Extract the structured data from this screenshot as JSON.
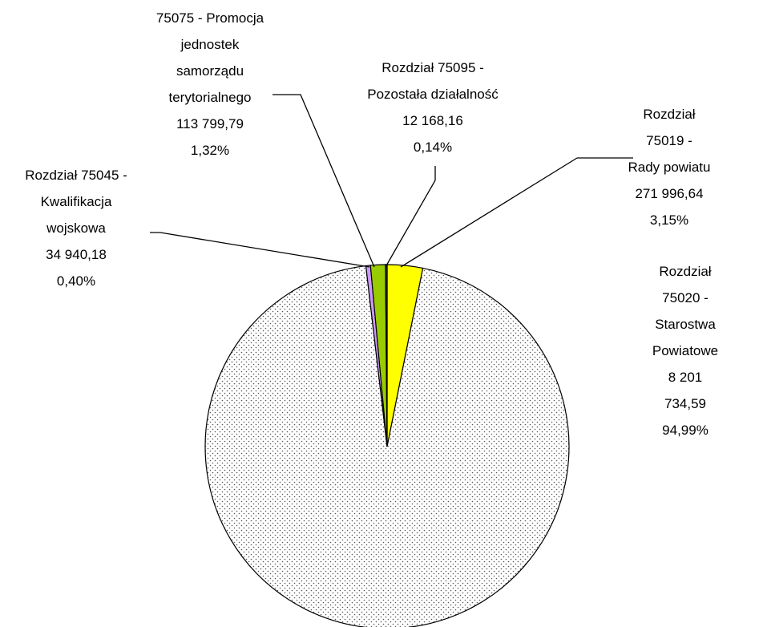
{
  "chart_data": {
    "type": "pie",
    "categories": [
      "Rozdział 75019 -\nRady powiatu",
      "Rozdział 75020 -\nStarostwa\nPowiatowe",
      "Rozdział 75045 -\nKwalifikacja\nwojskowa",
      "75075 - Promocja\njednostek\nsamorządu\nterytorialnego",
      "Rozdział 75095 -\nPozostała działalność"
    ],
    "values": [
      271996.64,
      8201734.59,
      34940.18,
      113799.79,
      12168.16
    ],
    "value_labels": [
      "271 996,64",
      "8 201 734,59",
      "34 940,18",
      "113 799,79",
      "12 168,16"
    ],
    "percentages": [
      3.15,
      94.99,
      0.4,
      1.32,
      0.14
    ],
    "percentage_labels": [
      "3,15%",
      "94,99%",
      "0,40%",
      "1,32%",
      "0,14%"
    ],
    "colors": [
      "#ffff00",
      "#ffffff",
      "#cc99ff",
      "#99cc00",
      "#404040"
    ],
    "patterns": [
      "solid",
      "dotted",
      "solid",
      "solid",
      "solid"
    ],
    "start_angle": 0,
    "direction": "clockwise"
  }
}
